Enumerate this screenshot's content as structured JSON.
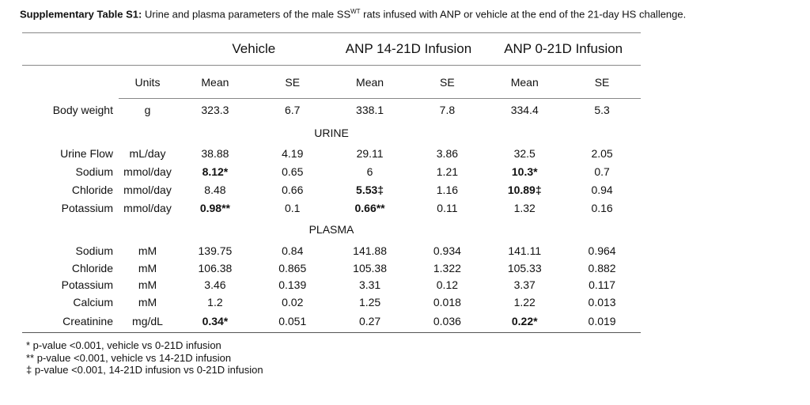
{
  "title": {
    "label": "Supplementary Table S1:",
    "text": "Urine and plasma parameters of the male SS",
    "superscript": "WT",
    "text_end": " rats infused with ANP or vehicle at the end of the 21-day HS challenge."
  },
  "table": {
    "groups": [
      "Vehicle",
      "ANP 14-21D Infusion",
      "ANP 0-21D Infusion"
    ],
    "columns": [
      "Units",
      "Mean",
      "SE",
      "Mean",
      "SE",
      "Mean",
      "SE"
    ],
    "rows": [
      [
        "Body weight",
        "g",
        "323.3",
        "6.7",
        "338.1",
        "7.8",
        "334.4",
        "5.3"
      ]
    ],
    "sections": [
      {
        "title": "URINE",
        "rows": [
          [
            "Urine Flow",
            "mL/day",
            "38.88",
            "4.19",
            "29.11",
            "3.86",
            "32.5",
            "2.05"
          ],
          [
            "Sodium",
            "mmol/day",
            "8.12*",
            "0.65",
            "6",
            "1.21",
            "10.3*",
            "0.7"
          ],
          [
            "Chloride",
            "mmol/day",
            "8.48",
            "0.66",
            "5.53‡",
            "1.16",
            "10.89‡",
            "0.94"
          ],
          [
            "Potassium",
            "mmol/day",
            "0.98**",
            "0.1",
            "0.66**",
            "0.11",
            "1.32",
            "0.16"
          ]
        ]
      },
      {
        "title": "PLASMA",
        "rows": [
          [
            "Sodium",
            "mM",
            "139.75",
            "0.84",
            "141.88",
            "0.934",
            "141.11",
            "0.964"
          ],
          [
            "Chloride",
            "mM",
            "106.38",
            "0.865",
            "105.38",
            "1.322",
            "105.33",
            "0.882"
          ],
          [
            "Potassium",
            "mM",
            "3.46",
            "0.139",
            "3.31",
            "0.12",
            "3.37",
            "0.117"
          ],
          [
            "Calcium",
            "mM",
            "1.2",
            "0.02",
            "1.25",
            "0.018",
            "1.22",
            "0.013"
          ],
          [
            "Creatinine",
            "mg/dL",
            "0.34*",
            "0.051",
            "0.27",
            "0.036",
            "0.22*",
            "0.019"
          ]
        ]
      }
    ]
  },
  "footnotes": [
    "* p-value <0.001, vehicle vs 0-21D infusion",
    "** p-value <0.001, vehicle vs 14-21D infusion",
    "‡ p-value <0.001, 14-21D infusion vs 0-21D infusion"
  ]
}
